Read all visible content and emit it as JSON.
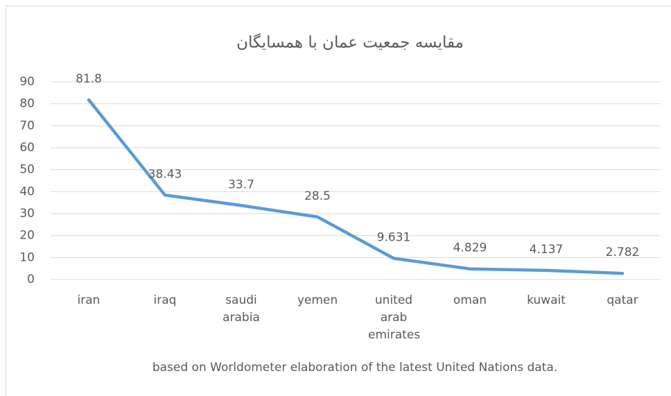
{
  "chart_data": {
    "type": "line",
    "title": "مقایسه جمعیت عمان با همسایگان",
    "subtitle": "based on Worldometer elaboration of the latest United Nations data.",
    "categories": [
      "iran",
      "iraq",
      "saudi arabia",
      "yemen",
      "united arab emirates",
      "oman",
      "kuwait",
      "qatar"
    ],
    "series": [
      {
        "color": "#5b9bd5",
        "values": [
          81.8,
          38.43,
          33.7,
          28.5,
          9.631,
          4.829,
          4.137,
          2.782
        ]
      }
    ],
    "ylim": [
      0,
      90
    ],
    "yticks": [
      0,
      10,
      20,
      30,
      40,
      50,
      60,
      70,
      80,
      90
    ],
    "grid": true
  }
}
